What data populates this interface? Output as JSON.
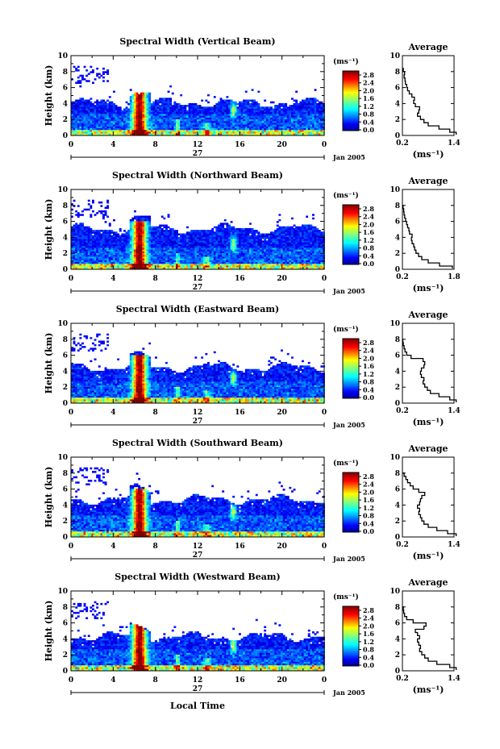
{
  "chart_data": {
    "type": "heatmap",
    "figure_xlabel": "Local Time",
    "panels": [
      {
        "title": "Spectral Width (Vertical Beam)",
        "ylabel": "Height (km)",
        "ylim": [
          0,
          10
        ],
        "yticks": [
          "0",
          "2",
          "4",
          "6",
          "8",
          "10"
        ],
        "xticks": [
          "0",
          "4",
          "8",
          "12",
          "16",
          "20",
          "0"
        ],
        "xlim": [
          0,
          24
        ],
        "date_day": "27",
        "date_label": "Jan 2005",
        "layer_top": 4.0,
        "colorbar": {
          "unit": "(ms⁻¹)",
          "ticks": [
            "0.0",
            "0.4",
            "0.8",
            "1.2",
            "1.6",
            "2.0",
            "2.4",
            "2.8"
          ],
          "range": [
            0,
            2.8
          ]
        },
        "average": {
          "title": "Average",
          "xlabel": "(ms⁻¹)",
          "xticks": [
            "0.2",
            "1.4"
          ],
          "xlim": [
            0.2,
            1.4
          ],
          "profile": [
            [
              1.45,
              0.1
            ],
            [
              1.3,
              0.4
            ],
            [
              1.05,
              0.8
            ],
            [
              0.8,
              1.2
            ],
            [
              0.7,
              1.6
            ],
            [
              0.62,
              2.0
            ],
            [
              0.55,
              2.4
            ],
            [
              0.58,
              2.8
            ],
            [
              0.6,
              3.2
            ],
            [
              0.5,
              3.6
            ],
            [
              0.46,
              4.0
            ],
            [
              0.48,
              4.4
            ],
            [
              0.42,
              4.8
            ],
            [
              0.36,
              5.2
            ],
            [
              0.32,
              5.6
            ],
            [
              0.3,
              6.0
            ],
            [
              0.27,
              6.4
            ],
            [
              0.26,
              6.8
            ],
            [
              0.24,
              7.2
            ],
            [
              0.25,
              7.6
            ],
            [
              0.22,
              8.0
            ],
            [
              0.2,
              8.4
            ]
          ]
        }
      },
      {
        "title": "Spectral Width (Northward Beam)",
        "ylabel": "Height (km)",
        "ylim": [
          0,
          10
        ],
        "yticks": [
          "0",
          "2",
          "4",
          "6",
          "8",
          "10"
        ],
        "xticks": [
          "0",
          "4",
          "8",
          "12",
          "16",
          "20",
          "0"
        ],
        "xlim": [
          0,
          24
        ],
        "date_day": "27",
        "date_label": "Jan 2005",
        "layer_top": 5.0,
        "colorbar": {
          "unit": "(ms⁻¹)",
          "ticks": [
            "0.0",
            "0.4",
            "0.8",
            "1.2",
            "1.6",
            "2.0",
            "2.4",
            "2.8"
          ],
          "range": [
            0,
            2.8
          ]
        },
        "average": {
          "title": "Average",
          "xlabel": "(ms⁻¹)",
          "xticks": [
            "0.2",
            "1.8"
          ],
          "xlim": [
            0.2,
            1.8
          ],
          "profile": [
            [
              1.75,
              0.1
            ],
            [
              1.35,
              0.4
            ],
            [
              1.0,
              0.8
            ],
            [
              0.8,
              1.2
            ],
            [
              0.7,
              1.6
            ],
            [
              0.62,
              2.0
            ],
            [
              0.58,
              2.4
            ],
            [
              0.55,
              2.8
            ],
            [
              0.5,
              3.2
            ],
            [
              0.48,
              3.6
            ],
            [
              0.5,
              4.0
            ],
            [
              0.42,
              4.4
            ],
            [
              0.4,
              4.8
            ],
            [
              0.36,
              5.2
            ],
            [
              0.33,
              5.6
            ],
            [
              0.3,
              6.0
            ],
            [
              0.27,
              6.4
            ],
            [
              0.25,
              6.8
            ],
            [
              0.24,
              7.2
            ],
            [
              0.22,
              7.6
            ],
            [
              0.2,
              8.0
            ]
          ]
        }
      },
      {
        "title": "Spectral Width (Eastward Beam)",
        "ylabel": "Height (km)",
        "ylim": [
          0,
          10
        ],
        "yticks": [
          "0",
          "2",
          "4",
          "6",
          "8",
          "10"
        ],
        "xticks": [
          "0",
          "4",
          "8",
          "12",
          "16",
          "20",
          "0"
        ],
        "xlim": [
          0,
          24
        ],
        "date_day": "27",
        "date_label": "Jan 2005",
        "layer_top": 4.4,
        "colorbar": {
          "unit": "(ms⁻¹)",
          "ticks": [
            "0.0",
            "0.4",
            "0.8",
            "1.2",
            "1.6",
            "2.0",
            "2.4",
            "2.8"
          ],
          "range": [
            0,
            2.8
          ]
        },
        "average": {
          "title": "Average",
          "xlabel": "(ms⁻¹)",
          "xticks": [
            "0.2",
            "1.4"
          ],
          "xlim": [
            0.2,
            1.4
          ],
          "profile": [
            [
              1.45,
              0.1
            ],
            [
              1.3,
              0.4
            ],
            [
              1.05,
              0.8
            ],
            [
              0.85,
              1.2
            ],
            [
              0.78,
              1.6
            ],
            [
              0.72,
              2.0
            ],
            [
              0.68,
              2.4
            ],
            [
              0.7,
              2.8
            ],
            [
              0.64,
              3.2
            ],
            [
              0.62,
              3.6
            ],
            [
              0.64,
              4.0
            ],
            [
              0.7,
              4.4
            ],
            [
              0.72,
              4.8
            ],
            [
              0.68,
              5.2
            ],
            [
              0.4,
              5.6
            ],
            [
              0.3,
              6.0
            ],
            [
              0.26,
              6.4
            ],
            [
              0.24,
              6.8
            ],
            [
              0.22,
              7.2
            ],
            [
              0.21,
              7.6
            ],
            [
              0.2,
              8.0
            ]
          ]
        }
      },
      {
        "title": "Spectral Width (Southward Beam)",
        "ylabel": "Height (km)",
        "ylim": [
          0,
          10
        ],
        "yticks": [
          "0",
          "2",
          "4",
          "6",
          "8",
          "10"
        ],
        "xticks": [
          "0",
          "4",
          "8",
          "12",
          "16",
          "20",
          "0"
        ],
        "xlim": [
          0,
          24
        ],
        "date_day": "27",
        "date_label": "Jan 2005",
        "layer_top": 4.6,
        "colorbar": {
          "unit": "(ms⁻¹)",
          "ticks": [
            "0.0",
            "0.4",
            "0.8",
            "1.2",
            "1.6",
            "2.0",
            "2.4",
            "2.8"
          ],
          "range": [
            0,
            2.8
          ]
        },
        "average": {
          "title": "Average",
          "xlabel": "(ms⁻¹)",
          "xticks": [
            "0.2",
            "1.4"
          ],
          "xlim": [
            0.2,
            1.4
          ],
          "profile": [
            [
              1.45,
              0.1
            ],
            [
              1.25,
              0.4
            ],
            [
              1.0,
              0.8
            ],
            [
              0.8,
              1.2
            ],
            [
              0.7,
              1.6
            ],
            [
              0.65,
              2.0
            ],
            [
              0.62,
              2.4
            ],
            [
              0.58,
              2.8
            ],
            [
              0.6,
              3.2
            ],
            [
              0.55,
              3.6
            ],
            [
              0.6,
              4.0
            ],
            [
              0.62,
              4.4
            ],
            [
              0.65,
              4.8
            ],
            [
              0.72,
              5.2
            ],
            [
              0.58,
              5.6
            ],
            [
              0.45,
              6.0
            ],
            [
              0.38,
              6.4
            ],
            [
              0.32,
              6.8
            ],
            [
              0.28,
              7.2
            ],
            [
              0.24,
              7.6
            ],
            [
              0.2,
              8.0
            ]
          ]
        }
      },
      {
        "title": "Spectral Width (Westward Beam)",
        "ylabel": "Height (km)",
        "ylim": [
          0,
          10
        ],
        "yticks": [
          "0",
          "2",
          "4",
          "6",
          "8",
          "10"
        ],
        "xticks": [
          "0",
          "4",
          "8",
          "12",
          "16",
          "20",
          "0"
        ],
        "xlim": [
          0,
          24
        ],
        "date_day": "27",
        "date_label": "Jan 2005",
        "layer_top": 4.2,
        "colorbar": {
          "unit": "(ms⁻¹)",
          "ticks": [
            "0.0",
            "0.4",
            "0.8",
            "1.2",
            "1.6",
            "2.0",
            "2.4",
            "2.8"
          ],
          "range": [
            0,
            2.8
          ]
        },
        "average": {
          "title": "Average",
          "xlabel": "(ms⁻¹)",
          "xticks": [
            "0.2",
            "1.4"
          ],
          "xlim": [
            0.2,
            1.4
          ],
          "profile": [
            [
              1.45,
              0.1
            ],
            [
              1.3,
              0.4
            ],
            [
              1.0,
              0.8
            ],
            [
              0.8,
              1.2
            ],
            [
              0.72,
              1.6
            ],
            [
              0.65,
              2.0
            ],
            [
              0.6,
              2.4
            ],
            [
              0.62,
              2.8
            ],
            [
              0.58,
              3.2
            ],
            [
              0.55,
              3.6
            ],
            [
              0.6,
              4.0
            ],
            [
              0.55,
              4.4
            ],
            [
              0.5,
              4.8
            ],
            [
              0.7,
              5.2
            ],
            [
              0.75,
              5.6
            ],
            [
              0.45,
              6.0
            ],
            [
              0.3,
              6.4
            ],
            [
              0.25,
              6.8
            ],
            [
              0.23,
              7.2
            ],
            [
              0.22,
              7.6
            ],
            [
              0.2,
              8.0
            ]
          ]
        }
      }
    ]
  }
}
